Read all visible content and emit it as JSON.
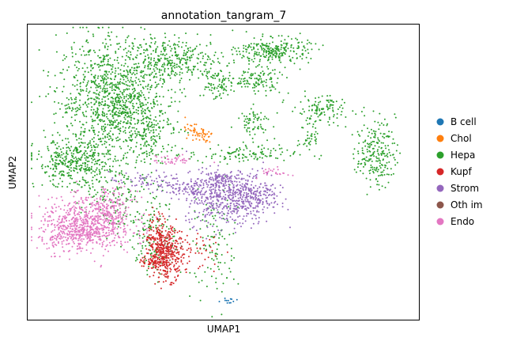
{
  "chart_data": {
    "type": "scatter",
    "title": "annotation_tangram_7",
    "xlabel": "UMAP1",
    "ylabel": "UMAP2",
    "xticks": "none",
    "yticks": "none",
    "grid": false,
    "legend_position": "right",
    "xlim": [
      0,
      100
    ],
    "ylim": [
      0,
      100
    ],
    "series": [
      {
        "name": "B cell",
        "color": "#1f77b4",
        "clusters": [
          {
            "cx": 50.9,
            "cy": 6.2,
            "sx": 1.5,
            "sy": 0.7,
            "n": 12
          }
        ]
      },
      {
        "name": "Chol",
        "color": "#ff7f0e",
        "clusters": [
          {
            "cx": 44.0,
            "cy": 62.8,
            "sx": 1.6,
            "sy": 1.2,
            "n": 45
          },
          {
            "cx": 41.5,
            "cy": 65.5,
            "sx": 1.0,
            "sy": 1.0,
            "n": 12
          }
        ]
      },
      {
        "name": "Hepa",
        "color": "#2ca02c",
        "clusters": [
          {
            "cx": 22.0,
            "cy": 75.0,
            "sx": 7.0,
            "sy": 10.0,
            "n": 1100
          },
          {
            "cx": 12.0,
            "cy": 53.0,
            "sx": 5.0,
            "sy": 4.0,
            "n": 380
          },
          {
            "cx": 38.0,
            "cy": 88.0,
            "sx": 6.0,
            "sy": 3.5,
            "n": 300
          },
          {
            "cx": 30.0,
            "cy": 65.0,
            "sx": 3.5,
            "sy": 6.0,
            "n": 180
          },
          {
            "cx": 48.0,
            "cy": 80.0,
            "sx": 2.2,
            "sy": 3.0,
            "n": 80
          },
          {
            "cx": 63.0,
            "cy": 91.0,
            "sx": 4.5,
            "sy": 2.2,
            "n": 260
          },
          {
            "cx": 58.0,
            "cy": 81.0,
            "sx": 3.5,
            "sy": 2.2,
            "n": 110
          },
          {
            "cx": 58.0,
            "cy": 67.0,
            "sx": 2.2,
            "sy": 2.5,
            "n": 70
          },
          {
            "cx": 75.0,
            "cy": 71.0,
            "sx": 4.0,
            "sy": 2.5,
            "n": 120
          },
          {
            "cx": 89.0,
            "cy": 56.5,
            "sx": 2.5,
            "sy": 5.5,
            "n": 220
          },
          {
            "cx": 72.0,
            "cy": 62.0,
            "sx": 1.2,
            "sy": 2.0,
            "n": 35
          },
          {
            "cx": 32.0,
            "cy": 30.0,
            "sx": 3.0,
            "sy": 8.0,
            "n": 150
          },
          {
            "cx": 48.0,
            "cy": 25.0,
            "sx": 3.0,
            "sy": 10.0,
            "n": 110
          },
          {
            "cx": 22.0,
            "cy": 40.0,
            "sx": 4.0,
            "sy": 6.0,
            "n": 120
          },
          {
            "cx": 55.0,
            "cy": 56.0,
            "sx": 7.0,
            "sy": 1.5,
            "n": 120
          }
        ]
      },
      {
        "name": "Kupf",
        "color": "#d62728",
        "clusters": [
          {
            "cx": 35.5,
            "cy": 22.0,
            "sx": 2.2,
            "sy": 4.2,
            "n": 340
          },
          {
            "cx": 33.5,
            "cy": 28.5,
            "sx": 1.8,
            "sy": 4.0,
            "n": 110
          },
          {
            "cx": 32.0,
            "cy": 19.5,
            "sx": 1.8,
            "sy": 1.2,
            "n": 50
          },
          {
            "cx": 44.0,
            "cy": 24.0,
            "sx": 3.0,
            "sy": 4.0,
            "n": 40
          }
        ]
      },
      {
        "name": "Strom",
        "color": "#9467bd",
        "clusters": [
          {
            "cx": 51.5,
            "cy": 41.0,
            "sx": 5.5,
            "sy": 4.5,
            "n": 500
          },
          {
            "cx": 48.0,
            "cy": 47.5,
            "sx": 2.2,
            "sy": 2.0,
            "n": 80
          },
          {
            "cx": 40.0,
            "cy": 44.5,
            "sx": 4.0,
            "sy": 1.6,
            "n": 90
          },
          {
            "cx": 30.0,
            "cy": 47.0,
            "sx": 4.5,
            "sy": 1.5,
            "n": 60
          },
          {
            "cx": 58.0,
            "cy": 44.5,
            "sx": 3.0,
            "sy": 3.0,
            "n": 120
          }
        ]
      },
      {
        "name": "Oth im",
        "color": "#8c564b",
        "clusters": [
          {
            "cx": 36.0,
            "cy": 24.0,
            "sx": 1.5,
            "sy": 2.5,
            "n": 10
          }
        ]
      },
      {
        "name": "Endo",
        "color": "#e377c2",
        "clusters": [
          {
            "cx": 15.0,
            "cy": 32.0,
            "sx": 6.0,
            "sy": 4.5,
            "n": 650
          },
          {
            "cx": 21.0,
            "cy": 38.0,
            "sx": 3.0,
            "sy": 4.0,
            "n": 140
          },
          {
            "cx": 37.0,
            "cy": 54.0,
            "sx": 2.5,
            "sy": 0.8,
            "n": 40
          },
          {
            "cx": 63.0,
            "cy": 50.0,
            "sx": 2.0,
            "sy": 0.8,
            "n": 25
          },
          {
            "cx": 12.0,
            "cy": 29.0,
            "sx": 3.0,
            "sy": 2.0,
            "n": 100
          }
        ]
      }
    ]
  }
}
